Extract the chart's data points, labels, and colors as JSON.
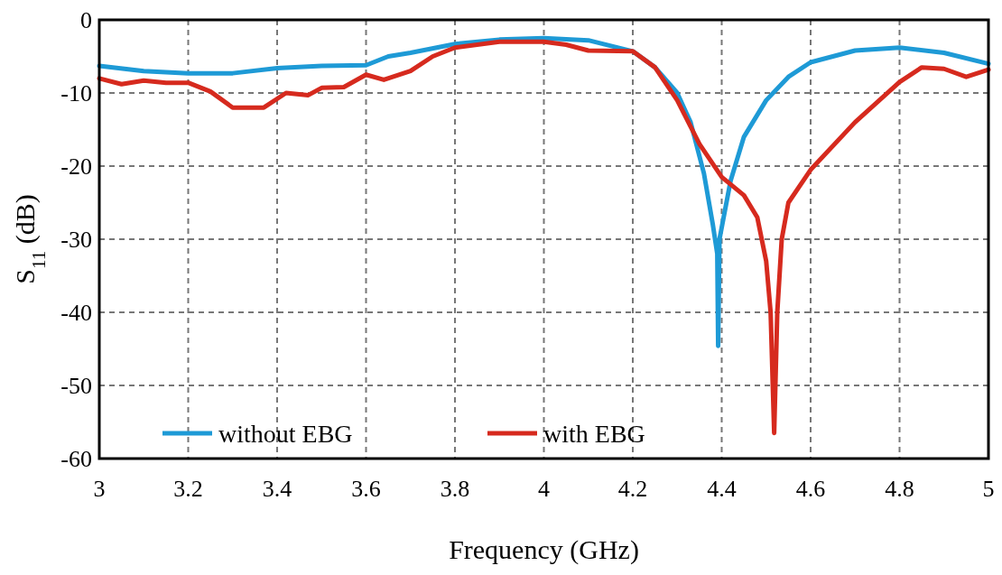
{
  "chart_data": {
    "type": "line",
    "xlabel": "Frequency (GHz)",
    "ylabel": "S$_{11}$ (dB)",
    "xlim": [
      3,
      5
    ],
    "ylim": [
      -60,
      0
    ],
    "xticks": [
      3,
      3.2,
      3.4,
      3.6,
      3.8,
      4,
      4.2,
      4.4,
      4.6,
      4.8,
      5
    ],
    "yticks": [
      -60,
      -50,
      -40,
      -30,
      -20,
      -10,
      0
    ],
    "grid": true,
    "legend": "bottom left",
    "line_style": "solid",
    "marker": "none",
    "series": [
      {
        "name": "without EBG",
        "color": "#1e9ad6",
        "x": [
          3,
          3.1,
          3.2,
          3.3,
          3.4,
          3.5,
          3.6,
          3.65,
          3.7,
          3.8,
          3.9,
          4,
          4.1,
          4.2,
          4.25,
          4.3,
          4.33,
          4.36,
          4.38,
          4.39,
          4.392,
          4.395,
          4.42,
          4.45,
          4.5,
          4.55,
          4.6,
          4.7,
          4.8,
          4.9,
          5
        ],
        "values": [
          -6.3,
          -7,
          -7.3,
          -7.3,
          -6.6,
          -6.3,
          -6.2,
          -5,
          -4.5,
          -3.3,
          -2.7,
          -2.5,
          -2.8,
          -4.3,
          -6.5,
          -10,
          -14,
          -21,
          -28,
          -32,
          -44.6,
          -30,
          -22,
          -16,
          -11,
          -7.8,
          -5.8,
          -4.2,
          -3.8,
          -4.5,
          -6
        ]
      },
      {
        "name": "with EBG",
        "color": "#d62a1e",
        "x": [
          3,
          3.05,
          3.1,
          3.15,
          3.2,
          3.25,
          3.3,
          3.37,
          3.42,
          3.47,
          3.5,
          3.55,
          3.6,
          3.64,
          3.7,
          3.75,
          3.8,
          3.9,
          4,
          4.05,
          4.1,
          4.2,
          4.25,
          4.3,
          4.35,
          4.4,
          4.45,
          4.48,
          4.5,
          4.51,
          4.518,
          4.525,
          4.535,
          4.55,
          4.6,
          4.7,
          4.8,
          4.85,
          4.9,
          4.95,
          5
        ],
        "values": [
          -8,
          -8.8,
          -8.3,
          -8.6,
          -8.6,
          -9.8,
          -12,
          -12,
          -10,
          -10.3,
          -9.3,
          -9.2,
          -7.5,
          -8.2,
          -7,
          -5,
          -3.8,
          -3,
          -3,
          -3.4,
          -4.2,
          -4.3,
          -6.5,
          -11,
          -17,
          -21.5,
          -24,
          -27,
          -33,
          -40,
          -56.5,
          -40,
          -30,
          -25,
          -20.5,
          -14,
          -8.5,
          -6.5,
          -6.7,
          -7.8,
          -6.8
        ]
      }
    ]
  }
}
